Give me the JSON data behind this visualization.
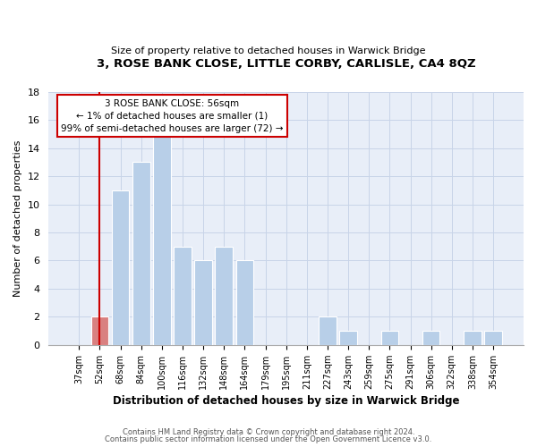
{
  "title": "3, ROSE BANK CLOSE, LITTLE CORBY, CARLISLE, CA4 8QZ",
  "subtitle": "Size of property relative to detached houses in Warwick Bridge",
  "xlabel": "Distribution of detached houses by size in Warwick Bridge",
  "ylabel": "Number of detached properties",
  "bar_labels": [
    "37sqm",
    "52sqm",
    "68sqm",
    "84sqm",
    "100sqm",
    "116sqm",
    "132sqm",
    "148sqm",
    "164sqm",
    "179sqm",
    "195sqm",
    "211sqm",
    "227sqm",
    "243sqm",
    "259sqm",
    "275sqm",
    "291sqm",
    "306sqm",
    "322sqm",
    "338sqm",
    "354sqm"
  ],
  "bar_values": [
    0,
    2,
    11,
    13,
    15,
    7,
    6,
    7,
    6,
    0,
    0,
    0,
    2,
    1,
    0,
    1,
    0,
    1,
    0,
    1,
    1
  ],
  "highlight_bar_index": 1,
  "bar_color": "#b8cfe8",
  "highlight_bar_color": "#d98080",
  "ylim": [
    0,
    18
  ],
  "yticks": [
    0,
    2,
    4,
    6,
    8,
    10,
    12,
    14,
    16,
    18
  ],
  "annotation_title": "3 ROSE BANK CLOSE: 56sqm",
  "annotation_line1": "← 1% of detached houses are smaller (1)",
  "annotation_line2": "99% of semi-detached houses are larger (72) →",
  "annotation_box_color": "#ffffff",
  "annotation_border_color": "#cc0000",
  "vline_color": "#cc0000",
  "vline_x_index": 1,
  "bg_color": "#e8eef8",
  "footer1": "Contains HM Land Registry data © Crown copyright and database right 2024.",
  "footer2": "Contains public sector information licensed under the Open Government Licence v3.0."
}
